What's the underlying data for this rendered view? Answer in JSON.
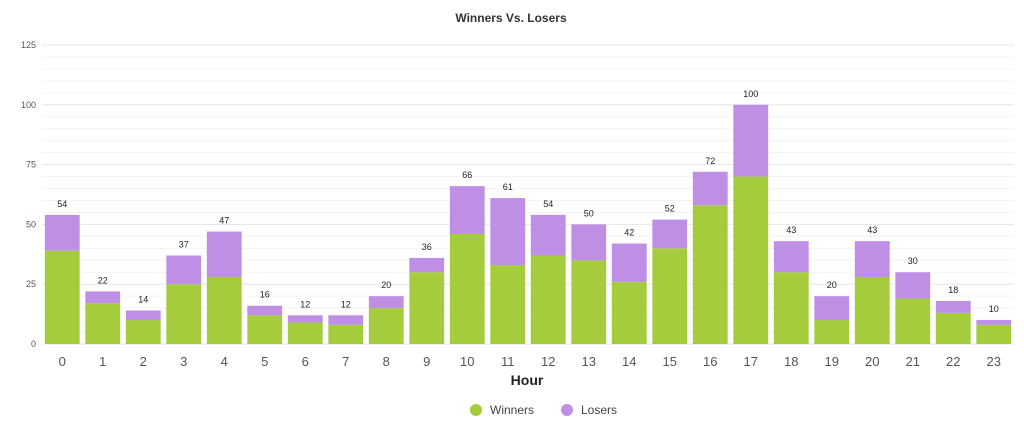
{
  "chart_data": {
    "type": "bar",
    "stacked": true,
    "title": "Winners Vs. Losers",
    "xlabel": "Hour",
    "ylabel": "",
    "ylim": [
      0,
      125
    ],
    "yticks": [
      "0",
      "25",
      "50",
      "75",
      "100",
      "125"
    ],
    "categories": [
      "0",
      "1",
      "2",
      "3",
      "4",
      "5",
      "6",
      "7",
      "8",
      "9",
      "10",
      "11",
      "12",
      "13",
      "14",
      "15",
      "16",
      "17",
      "18",
      "19",
      "20",
      "21",
      "22",
      "23"
    ],
    "series": [
      {
        "name": "Winners",
        "color": "#a4cc3c",
        "values": [
          39,
          17,
          10,
          25,
          28,
          12,
          9,
          8,
          15,
          30,
          46,
          33,
          37,
          35,
          26,
          40,
          58,
          70,
          30,
          10,
          28,
          19,
          13,
          8
        ]
      },
      {
        "name": "Losers",
        "color": "#bf8fe6",
        "values": [
          15,
          5,
          4,
          12,
          19,
          4,
          3,
          4,
          5,
          6,
          20,
          28,
          17,
          15,
          16,
          12,
          14,
          30,
          13,
          10,
          15,
          11,
          5,
          2
        ]
      }
    ],
    "totals": [
      "54",
      "22",
      "14",
      "37",
      "47",
      "16",
      "12",
      "12",
      "20",
      "36",
      "66",
      "61",
      "54",
      "50",
      "42",
      "52",
      "72",
      "100",
      "43",
      "20",
      "43",
      "30",
      "18",
      "10"
    ],
    "grid": true,
    "legend": "bottom-center"
  }
}
